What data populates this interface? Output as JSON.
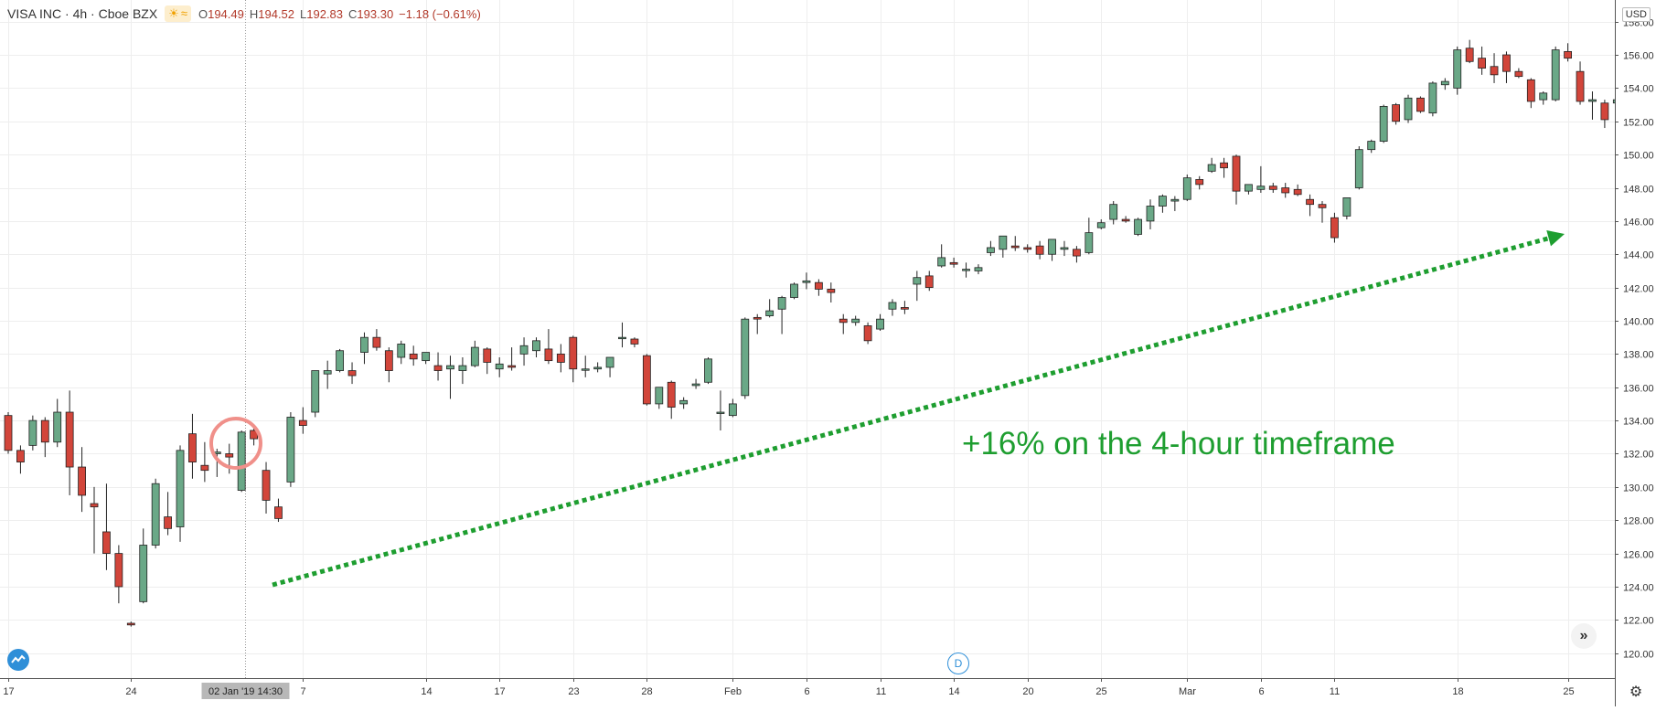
{
  "legend": {
    "symbol": "VISA INC · 4h · Cboe BZX",
    "sun_icon": "sun-icon",
    "wave_icon": "wave-icon",
    "o_label": "O",
    "o_value": "194.49",
    "h_label": "H",
    "h_value": "194.52",
    "l_label": "L",
    "l_value": "192.83",
    "c_label": "C",
    "c_value": "193.30",
    "change": "−1.18 (−0.61%)"
  },
  "currency": "USD",
  "annotation": "+16% on the 4-hour timeframe",
  "crosshair_label": "02 Jan '19   14:30",
  "d_button": "D",
  "colors": {
    "up": "#6aa887",
    "down": "#d2453a",
    "arrow": "#1e9e30",
    "grid": "#eeeeee"
  },
  "chart_data": {
    "type": "candlestick",
    "ylim": [
      118.5,
      159.3
    ],
    "y_ticks": [
      120,
      122,
      124,
      126,
      128,
      130,
      132,
      134,
      136,
      138,
      140,
      142,
      144,
      146,
      148,
      150,
      152,
      154,
      156,
      158
    ],
    "x_ticks": [
      {
        "label": "17",
        "i": 0
      },
      {
        "label": "24",
        "i": 10
      },
      {
        "label": "7",
        "i": 24
      },
      {
        "label": "14",
        "i": 34
      },
      {
        "label": "17",
        "i": 40
      },
      {
        "label": "23",
        "i": 46
      },
      {
        "label": "28",
        "i": 52
      },
      {
        "label": "Feb",
        "i": 59
      },
      {
        "label": "6",
        "i": 65
      },
      {
        "label": "11",
        "i": 71
      },
      {
        "label": "14",
        "i": 77
      },
      {
        "label": "20",
        "i": 83
      },
      {
        "label": "25",
        "i": 89
      },
      {
        "label": "Mar",
        "i": 96
      },
      {
        "label": "6",
        "i": 102
      },
      {
        "label": "11",
        "i": 108
      },
      {
        "label": "18",
        "i": 118
      },
      {
        "label": "25",
        "i": 127
      }
    ],
    "x_ticks_note": "",
    "candles": [
      [
        134.3,
        134.5,
        132.0,
        132.2
      ],
      [
        132.2,
        132.5,
        130.8,
        131.5
      ],
      [
        132.5,
        134.3,
        132.2,
        134.0
      ],
      [
        134.0,
        134.2,
        131.8,
        132.7
      ],
      [
        132.7,
        135.3,
        132.4,
        134.5
      ],
      [
        134.5,
        135.8,
        129.5,
        131.2
      ],
      [
        131.2,
        132.4,
        128.5,
        129.5
      ],
      [
        129.0,
        130.0,
        126.0,
        128.8
      ],
      [
        127.3,
        130.2,
        125.0,
        126.0
      ],
      [
        126.0,
        126.5,
        123.0,
        124.0
      ],
      [
        121.8,
        121.9,
        121.6,
        121.7
      ],
      [
        123.1,
        127.5,
        123.0,
        126.5
      ],
      [
        126.5,
        130.5,
        126.3,
        130.2
      ],
      [
        128.2,
        129.7,
        127.1,
        127.5
      ],
      [
        127.6,
        132.5,
        126.7,
        132.2
      ],
      [
        133.2,
        134.4,
        130.5,
        131.5
      ],
      [
        131.3,
        132.7,
        130.3,
        131.0
      ],
      [
        132.0,
        132.3,
        130.6,
        132.1
      ],
      [
        132.0,
        132.6,
        130.8,
        131.8
      ],
      [
        129.8,
        133.4,
        129.7,
        133.3
      ],
      [
        133.4,
        133.6,
        132.5,
        132.9
      ],
      [
        131.0,
        131.5,
        128.4,
        129.2
      ],
      [
        128.8,
        129.3,
        127.9,
        128.1
      ],
      [
        130.3,
        134.5,
        130.0,
        134.2
      ],
      [
        134.0,
        134.8,
        133.2,
        133.7
      ],
      [
        134.5,
        137.0,
        134.2,
        137.0
      ],
      [
        136.8,
        137.6,
        135.9,
        137.0
      ],
      [
        137.0,
        138.3,
        136.9,
        138.2
      ],
      [
        137.0,
        137.5,
        136.2,
        136.7
      ],
      [
        138.1,
        139.3,
        137.4,
        139.0
      ],
      [
        139.0,
        139.5,
        138.2,
        138.4
      ],
      [
        138.2,
        138.4,
        136.3,
        137.0
      ],
      [
        137.8,
        138.8,
        137.4,
        138.6
      ],
      [
        138.0,
        138.5,
        137.3,
        137.7
      ],
      [
        137.6,
        138.0,
        137.4,
        138.1
      ],
      [
        137.3,
        138.1,
        136.4,
        137.0
      ],
      [
        137.1,
        137.9,
        135.3,
        137.3
      ],
      [
        137.0,
        137.8,
        136.2,
        137.3
      ],
      [
        137.3,
        138.8,
        137.2,
        138.4
      ],
      [
        138.3,
        138.4,
        136.8,
        137.5
      ],
      [
        137.1,
        137.8,
        136.6,
        137.4
      ],
      [
        137.3,
        138.4,
        137.0,
        137.2
      ],
      [
        138.0,
        139.0,
        137.3,
        138.5
      ],
      [
        138.2,
        139.0,
        137.8,
        138.8
      ],
      [
        138.3,
        139.5,
        137.4,
        137.6
      ],
      [
        138.0,
        138.6,
        136.9,
        137.5
      ],
      [
        139.0,
        139.1,
        136.3,
        137.1
      ],
      [
        137.1,
        137.9,
        136.6,
        137.1
      ],
      [
        137.1,
        137.5,
        136.9,
        137.2
      ],
      [
        137.2,
        137.7,
        136.6,
        137.8
      ],
      [
        139.0,
        139.9,
        138.4,
        139.0
      ],
      [
        138.9,
        139.0,
        138.4,
        138.6
      ],
      [
        137.9,
        138.0,
        134.9,
        135.0
      ],
      [
        135.0,
        136.0,
        134.7,
        136.0
      ],
      [
        136.3,
        136.4,
        134.1,
        134.8
      ],
      [
        135.0,
        135.4,
        134.7,
        135.2
      ],
      [
        136.1,
        136.5,
        135.9,
        136.2
      ],
      [
        136.3,
        137.8,
        136.2,
        137.7
      ],
      [
        134.5,
        135.8,
        133.4,
        134.5
      ],
      [
        134.3,
        135.3,
        134.2,
        135.0
      ],
      [
        135.5,
        140.2,
        135.3,
        140.1
      ],
      [
        140.2,
        140.4,
        139.2,
        140.1
      ],
      [
        140.3,
        141.3,
        140.2,
        140.6
      ],
      [
        140.7,
        141.5,
        139.2,
        141.4
      ],
      [
        141.4,
        142.3,
        141.3,
        142.2
      ],
      [
        142.3,
        142.9,
        141.9,
        142.4
      ],
      [
        142.3,
        142.5,
        141.5,
        141.9
      ],
      [
        141.9,
        142.3,
        141.1,
        141.7
      ],
      [
        140.1,
        140.4,
        139.2,
        139.9
      ],
      [
        139.9,
        140.3,
        139.7,
        140.1
      ],
      [
        139.7,
        139.9,
        138.6,
        138.8
      ],
      [
        139.5,
        140.4,
        139.4,
        140.1
      ],
      [
        140.7,
        141.3,
        140.3,
        141.1
      ],
      [
        140.8,
        141.2,
        140.4,
        140.7
      ],
      [
        142.2,
        143.0,
        141.2,
        142.6
      ],
      [
        142.7,
        143.0,
        141.8,
        142.0
      ],
      [
        143.3,
        144.6,
        143.2,
        143.8
      ],
      [
        143.5,
        143.8,
        143.2,
        143.4
      ],
      [
        143.1,
        143.5,
        142.6,
        143.1
      ],
      [
        143.0,
        143.4,
        142.8,
        143.2
      ],
      [
        144.1,
        144.8,
        143.9,
        144.4
      ],
      [
        144.3,
        145.0,
        143.8,
        145.1
      ],
      [
        144.5,
        145.1,
        144.2,
        144.4
      ],
      [
        144.4,
        144.6,
        144.1,
        144.3
      ],
      [
        144.5,
        144.8,
        143.7,
        144.0
      ],
      [
        144.0,
        144.9,
        143.6,
        144.9
      ],
      [
        144.3,
        144.8,
        143.9,
        144.4
      ],
      [
        144.3,
        144.5,
        143.5,
        143.9
      ],
      [
        144.1,
        146.2,
        144.0,
        145.3
      ],
      [
        145.6,
        146.1,
        145.5,
        145.9
      ],
      [
        146.1,
        147.2,
        145.8,
        147.0
      ],
      [
        146.1,
        146.3,
        145.9,
        146.0
      ],
      [
        145.2,
        146.2,
        145.1,
        146.1
      ],
      [
        146.0,
        147.3,
        145.5,
        146.9
      ],
      [
        146.9,
        147.6,
        146.5,
        147.5
      ],
      [
        147.2,
        147.5,
        146.6,
        147.3
      ],
      [
        147.3,
        148.8,
        147.2,
        148.6
      ],
      [
        148.5,
        148.7,
        147.9,
        148.2
      ],
      [
        149.0,
        149.8,
        148.9,
        149.4
      ],
      [
        149.5,
        149.8,
        148.6,
        149.2
      ],
      [
        149.9,
        150.0,
        147.0,
        147.8
      ],
      [
        147.8,
        148.2,
        147.6,
        148.2
      ],
      [
        147.9,
        149.3,
        147.7,
        148.1
      ],
      [
        148.1,
        148.3,
        147.7,
        147.9
      ],
      [
        148.0,
        148.3,
        147.4,
        147.7
      ],
      [
        147.9,
        148.2,
        147.5,
        147.6
      ],
      [
        147.3,
        147.6,
        146.3,
        147.0
      ],
      [
        147.0,
        147.2,
        145.9,
        146.8
      ],
      [
        146.2,
        146.5,
        144.7,
        145.0
      ],
      [
        146.3,
        147.4,
        146.1,
        147.4
      ],
      [
        148.0,
        150.5,
        147.9,
        150.3
      ],
      [
        150.3,
        150.9,
        150.1,
        150.8
      ],
      [
        150.8,
        153.0,
        150.7,
        152.9
      ],
      [
        153.0,
        153.1,
        151.8,
        152.0
      ],
      [
        152.1,
        153.6,
        151.9,
        153.4
      ],
      [
        153.4,
        153.5,
        152.5,
        152.6
      ],
      [
        152.5,
        154.4,
        152.3,
        154.3
      ],
      [
        154.2,
        154.6,
        153.9,
        154.4
      ],
      [
        154.0,
        156.5,
        153.6,
        156.3
      ],
      [
        156.4,
        156.9,
        155.5,
        155.6
      ],
      [
        155.8,
        156.5,
        154.8,
        155.2
      ],
      [
        155.3,
        156.1,
        154.3,
        154.8
      ],
      [
        156.0,
        156.2,
        154.3,
        155.0
      ],
      [
        155.0,
        155.2,
        154.6,
        154.7
      ],
      [
        154.5,
        154.6,
        152.8,
        153.2
      ],
      [
        153.3,
        153.8,
        153.0,
        153.7
      ],
      [
        153.3,
        156.5,
        153.2,
        156.3
      ],
      [
        156.2,
        156.7,
        155.6,
        155.8
      ],
      [
        155.0,
        155.6,
        153.0,
        153.2
      ],
      [
        153.2,
        153.8,
        152.1,
        153.3
      ],
      [
        153.1,
        153.3,
        151.6,
        152.1
      ],
      [
        153.1,
        153.4,
        152.7,
        153.3
      ],
      [
        154.0,
        155.5,
        153.9,
        155.1
      ]
    ]
  }
}
